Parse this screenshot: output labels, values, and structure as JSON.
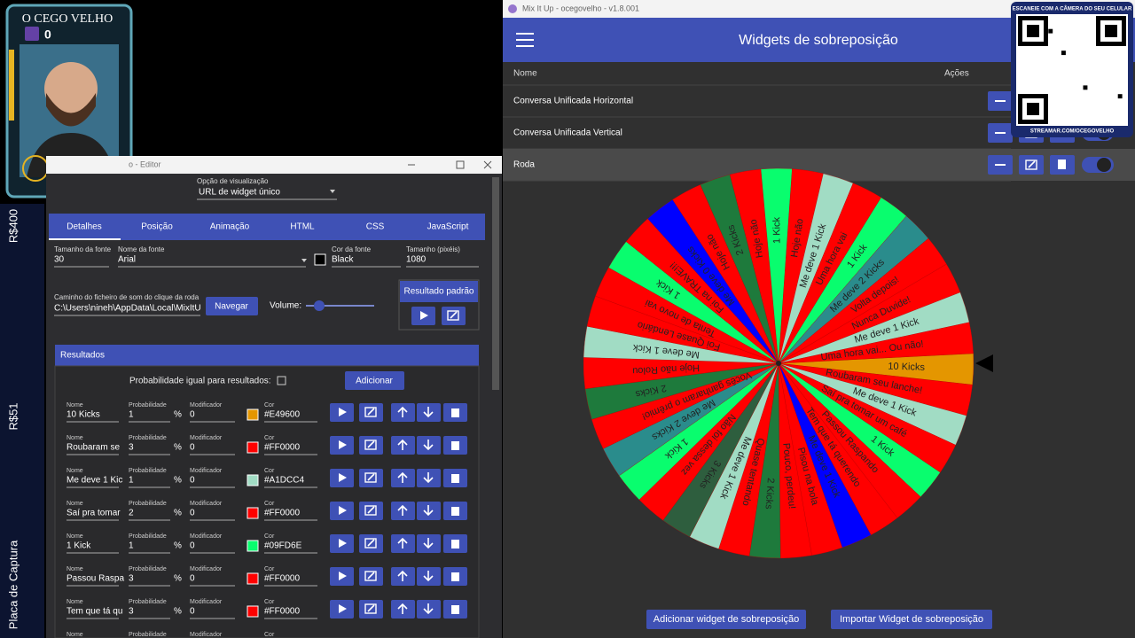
{
  "overlay": {
    "channel": "O CEGO VELHO",
    "count": 0
  },
  "side_labels": [
    "R$400",
    "R$51",
    "Placa de Captura"
  ],
  "editor": {
    "window_title": "o - Editor",
    "view_option_label": "Opção de visualização",
    "view_option_value": "URL de widget único",
    "tabs": [
      "Detalhes",
      "Posição",
      "Animação",
      "HTML",
      "CSS",
      "JavaScript"
    ],
    "fields": [
      {
        "label": "Tamanho da fonte",
        "value": "30"
      },
      {
        "label": "Nome da fonte",
        "value": "Arial"
      },
      {
        "label": "Cor da fonte",
        "value": "Black"
      },
      {
        "label": "Tamanho (pixéis)",
        "value": "1080"
      }
    ],
    "sound_label": "Caminho do ficheiro de som do clique da roda",
    "sound_path": "C:\\Users\\nineh\\AppData\\Local\\MixItU",
    "navigate": "Navegar",
    "volume_label": "Volume:",
    "default_result": "Resultado padrão",
    "results_title": "Resultados",
    "equal_probability": "Probabilidade igual para resultados:",
    "add": "Adicionar",
    "row_labels": {
      "name": "Nome",
      "probability": "Probabilidade",
      "modifier": "Modificador",
      "color": "Cor",
      "percent": "%"
    },
    "rows": [
      {
        "name": "10 Kicks",
        "probability": "1",
        "modifier": "0",
        "color": "#E49600"
      },
      {
        "name": "Roubaram se",
        "probability": "3",
        "modifier": "0",
        "color": "#FF0000"
      },
      {
        "name": "Me deve 1 Kic",
        "probability": "1",
        "modifier": "0",
        "color": "#A1DCC4"
      },
      {
        "name": "Saí pra tomar",
        "probability": "2",
        "modifier": "0",
        "color": "#FF0000"
      },
      {
        "name": "1 Kick",
        "probability": "1",
        "modifier": "0",
        "color": "#09FD6E"
      },
      {
        "name": "Passou Raspa",
        "probability": "3",
        "modifier": "0",
        "color": "#FF0000"
      },
      {
        "name": "Tem que tá qu",
        "probability": "3",
        "modifier": "0",
        "color": "#FF0000"
      }
    ]
  },
  "mixitup": {
    "window_title": "Mix It Up - ocegovelho - v1.8.001",
    "header": "Widgets de sobreposição",
    "columns": [
      "Nome",
      "Ações"
    ],
    "widgets": [
      "Conversa Unificada Horizontal",
      "Conversa Unificada Vertical",
      "Roda"
    ],
    "buttons": [
      "Adicionar widget de sobreposição",
      "Importar Widget de sobreposição"
    ]
  },
  "qr": {
    "top": "ESCANEIE COM A CÂMERA DO SEU CELULAR",
    "bottom": "STREAMAR.COM/OCEGOVELHO"
  },
  "wheel": [
    {
      "text": "10 Kicks",
      "color": "#E49600"
    },
    {
      "text": "Roubaram seu lanche!",
      "color": "#FF0000"
    },
    {
      "text": "Me deve 1 Kick",
      "color": "#A1DCC4"
    },
    {
      "text": "Saí pra tomar um café",
      "color": "#FF0000"
    },
    {
      "text": "1 Kick",
      "color": "#09FD6E"
    },
    {
      "text": "Passou Raspando",
      "color": "#FF0000"
    },
    {
      "text": "Tem que tá querendo",
      "color": "#FF0000"
    },
    {
      "text": "Me deve 1 Kick",
      "color": "#0000FF"
    },
    {
      "text": "Pisou na bola",
      "color": "#FF0000"
    },
    {
      "text": "Pouco, perdeu!",
      "color": "#FF0000"
    },
    {
      "text": "2 Kicks",
      "color": "#1E7A3C"
    },
    {
      "text": "Quase tentando",
      "color": "#FF0000"
    },
    {
      "text": "Me deve 1 Kick",
      "color": "#A1DCC4"
    },
    {
      "text": "3 Kicks",
      "color": "#2E5E3E"
    },
    {
      "text": "Não foi dessa vez",
      "color": "#FF0000"
    },
    {
      "text": "1 Kick",
      "color": "#09FD6E"
    },
    {
      "text": "Me deve 2 Kicks",
      "color": "#2A8C8C"
    },
    {
      "text": "Vocês ganharam o prêmio!",
      "color": "#FF0000"
    },
    {
      "text": "2 Kicks",
      "color": "#1E7A3C"
    },
    {
      "text": "Hoje não Rolou",
      "color": "#FF0000"
    },
    {
      "text": "Me deve 1 Kick",
      "color": "#A1DCC4"
    },
    {
      "text": "Foi Quase Lendário",
      "color": "#FF0000"
    },
    {
      "text": "Tenta de novo vai",
      "color": "#FF0000"
    },
    {
      "text": "1 Kick",
      "color": "#09FD6E"
    },
    {
      "text": "Foi na TRAVE!!!",
      "color": "#FF0000"
    },
    {
      "text": "Me deve 0 Kicks",
      "color": "#0000FF"
    },
    {
      "text": "Hoje não",
      "color": "#FF0000"
    },
    {
      "text": "2 Kicks",
      "color": "#1E7A3C"
    },
    {
      "text": "Hoje não",
      "color": "#FF0000"
    },
    {
      "text": "1 Kick",
      "color": "#09FD6E"
    },
    {
      "text": "Hoje não",
      "color": "#FF0000"
    },
    {
      "text": "Me deve 1 Kick",
      "color": "#A1DCC4"
    },
    {
      "text": "Uma hora vai",
      "color": "#FF0000"
    },
    {
      "text": "1 Kick",
      "color": "#09FD6E"
    },
    {
      "text": "Me deve 2 Kicks",
      "color": "#2A8C8C"
    },
    {
      "text": "Volta depois!",
      "color": "#FF0000"
    },
    {
      "text": "Nunca Duvide!",
      "color": "#FF0000"
    },
    {
      "text": "Me deve 1 Kick",
      "color": "#A1DCC4"
    },
    {
      "text": "Uma hora vai... Ou não!",
      "color": "#FF0000"
    }
  ]
}
